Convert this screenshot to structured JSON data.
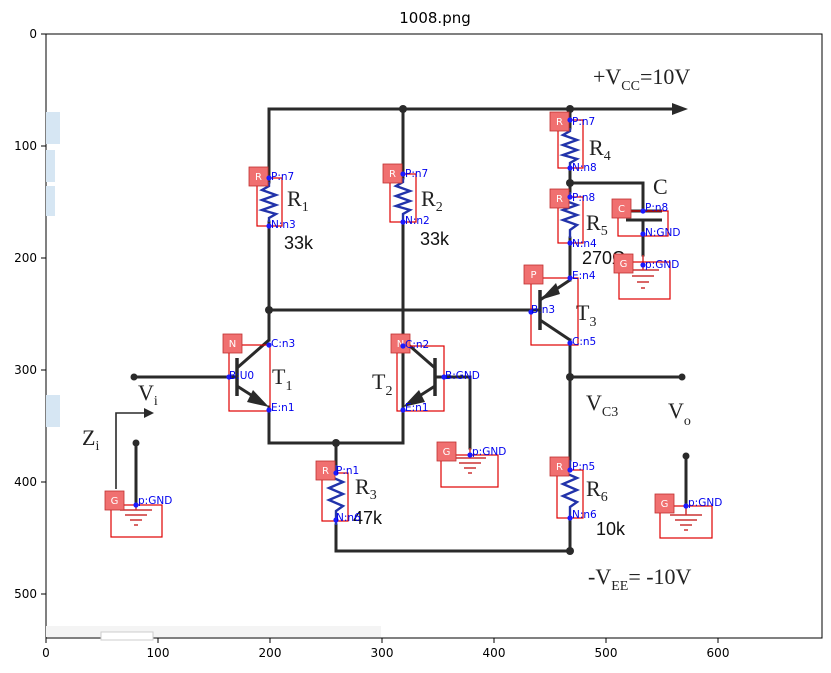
{
  "title": "1008.png",
  "axes": {
    "x_ticks": [
      "0",
      "100",
      "200",
      "300",
      "400",
      "500",
      "600"
    ],
    "y_ticks": [
      "0",
      "100",
      "200",
      "300",
      "400",
      "500"
    ]
  },
  "labels": {
    "vcc_prefix": "+V",
    "vcc_sub": "CC",
    "vcc_suffix": "=10V",
    "vee_prefix": "-V",
    "vee_sub": "EE",
    "vee_suffix": "= -10V",
    "r1": "R",
    "r1_sub": "1",
    "r1_val": "33k",
    "r2": "R",
    "r2_sub": "2",
    "r2_val": "33k",
    "r3": "R",
    "r3_sub": "3",
    "r3_val": "47k",
    "r4": "R",
    "r4_sub": "4",
    "r5": "R",
    "r5_sub": "5",
    "r5_val": "270Ω",
    "r6": "R",
    "r6_sub": "6",
    "r6_val": "10k",
    "c": "C",
    "t1": "T",
    "t1_sub": "1",
    "t2": "T",
    "t2_sub": "2",
    "t3": "T",
    "t3_sub": "3",
    "vi": "V",
    "vi_sub": "i",
    "zi": "Z",
    "zi_sub": "i",
    "vc3": "V",
    "vc3_sub": "C3",
    "vo": "V",
    "vo_sub": "o"
  },
  "badges": [
    {
      "label": "R"
    },
    {
      "label": "R"
    },
    {
      "label": "R"
    },
    {
      "label": "R"
    },
    {
      "label": "C"
    },
    {
      "label": "G"
    },
    {
      "label": "P"
    },
    {
      "label": "N"
    },
    {
      "label": "N"
    },
    {
      "label": "G"
    },
    {
      "label": "R"
    },
    {
      "label": "R"
    },
    {
      "label": "G"
    },
    {
      "label": "G"
    }
  ],
  "pins": [
    "P:n7",
    "N:n3",
    "P:n7",
    "N:n2",
    "P:n7",
    "N:n8",
    "P:n8",
    "N:n4",
    "P:n8",
    "N:GND",
    "p:GND",
    "E:n4",
    "B:n3",
    "C:n5",
    "C:n3",
    "B:U0",
    "E:n1",
    "C:n2",
    "B:GND",
    "E:n1",
    "p:GND",
    "P:n1",
    "N:n6",
    "P:n5",
    "N:n6",
    "p:GND",
    "p:GND"
  ]
}
